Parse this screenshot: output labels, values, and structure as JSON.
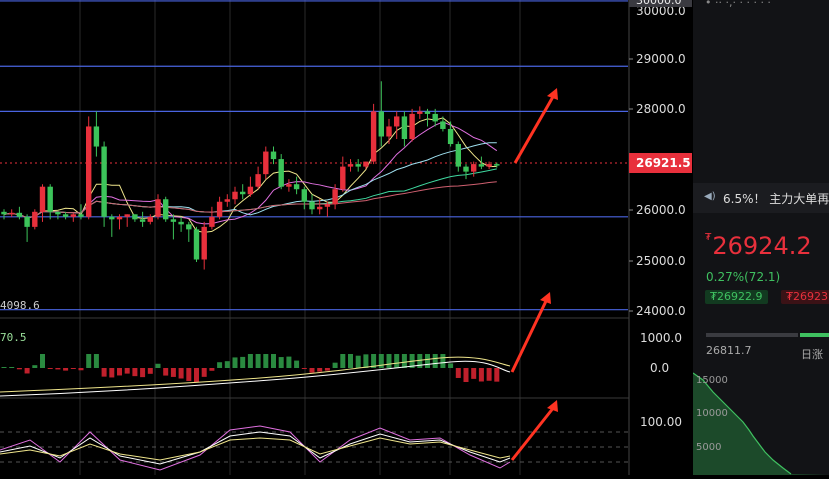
{
  "chart": {
    "y_axis_labels": [
      "30000.0",
      "29000.0",
      "28000.0",
      "26000.0",
      "25000.0",
      "24000.0"
    ],
    "current_price_tag": "26921.5",
    "top_partial_label": "30000.0",
    "left_level_label": "4098.6",
    "macd_axis_labels": [
      "1000.0",
      "0.0"
    ],
    "macd_left_label": "70.5",
    "kdj_axis_label": "100.00",
    "colors": {
      "up": "#e8303c",
      "down": "#3cc45a",
      "hline": "#4a64e0",
      "grid": "#2a2a2a",
      "tag_bg": "#e8303c",
      "arrow": "#ff3322"
    }
  },
  "chart_data": {
    "type": "candlestick",
    "ylim": [
      24300,
      30200
    ],
    "horizontal_levels": [
      30200,
      28900,
      28000,
      25900,
      24050
    ],
    "candles": [
      [
        26000,
        26050,
        25850,
        25950
      ],
      [
        25950,
        26050,
        25900,
        25980
      ],
      [
        25980,
        26100,
        25850,
        25900
      ],
      [
        25900,
        25950,
        25400,
        25700
      ],
      [
        25700,
        26050,
        25650,
        26000
      ],
      [
        26000,
        26550,
        25800,
        26500
      ],
      [
        26500,
        26550,
        25850,
        26000
      ],
      [
        26000,
        26000,
        25850,
        25950
      ],
      [
        25950,
        26000,
        25850,
        25900
      ],
      [
        25900,
        25980,
        25800,
        25950
      ],
      [
        25950,
        26150,
        25850,
        25900
      ],
      [
        25900,
        27900,
        25850,
        27700
      ],
      [
        27700,
        28000,
        27100,
        27300
      ],
      [
        27300,
        27400,
        25700,
        25900
      ],
      [
        25900,
        25950,
        25500,
        25850
      ],
      [
        25850,
        25950,
        25650,
        25900
      ],
      [
        25900,
        25950,
        25700,
        25950
      ],
      [
        25950,
        25950,
        25800,
        25850
      ],
      [
        25850,
        26000,
        25700,
        25800
      ],
      [
        25800,
        25950,
        25750,
        25900
      ],
      [
        25900,
        26350,
        25850,
        26250
      ],
      [
        26250,
        26300,
        25800,
        25850
      ],
      [
        25850,
        25950,
        25450,
        25800
      ],
      [
        25800,
        25900,
        25600,
        25750
      ],
      [
        25750,
        25800,
        25400,
        25650
      ],
      [
        25650,
        25700,
        25000,
        25050
      ],
      [
        25050,
        25800,
        24850,
        25700
      ],
      [
        25700,
        26100,
        25650,
        25900
      ],
      [
        25900,
        26300,
        25850,
        26200
      ],
      [
        26200,
        26350,
        26100,
        26250
      ],
      [
        26250,
        26500,
        26150,
        26400
      ],
      [
        26400,
        26550,
        26250,
        26350
      ],
      [
        26350,
        26700,
        26300,
        26500
      ],
      [
        26500,
        26900,
        26450,
        26750
      ],
      [
        26750,
        27300,
        26650,
        27200
      ],
      [
        27200,
        27300,
        26950,
        27050
      ],
      [
        27050,
        27150,
        26450,
        26500
      ],
      [
        26500,
        26650,
        26400,
        26550
      ],
      [
        26550,
        26700,
        26350,
        26450
      ],
      [
        26450,
        26500,
        26050,
        26200
      ],
      [
        26200,
        26350,
        25950,
        26050
      ],
      [
        26050,
        26250,
        25950,
        26100
      ],
      [
        26100,
        26200,
        25900,
        26150
      ],
      [
        26150,
        26550,
        26050,
        26450
      ],
      [
        26450,
        27100,
        26400,
        26900
      ],
      [
        26900,
        27050,
        26800,
        26950
      ],
      [
        26950,
        27050,
        26800,
        26900
      ],
      [
        26900,
        27000,
        26850,
        27000
      ],
      [
        27000,
        28150,
        26950,
        28000
      ],
      [
        28000,
        28600,
        27300,
        27500
      ],
      [
        27500,
        27850,
        27350,
        27700
      ],
      [
        27700,
        28000,
        27450,
        27900
      ],
      [
        27900,
        28000,
        27300,
        27450
      ],
      [
        27450,
        28050,
        27400,
        27950
      ],
      [
        27950,
        28100,
        27850,
        28000
      ],
      [
        28000,
        28050,
        27700,
        27950
      ],
      [
        27950,
        28050,
        27700,
        27800
      ],
      [
        27800,
        27900,
        27600,
        27650
      ],
      [
        27650,
        27800,
        27300,
        27350
      ],
      [
        27350,
        27400,
        26800,
        26900
      ],
      [
        26900,
        26950,
        26650,
        26800
      ],
      [
        26800,
        27000,
        26700,
        26950
      ],
      [
        26950,
        27100,
        26850,
        26900
      ],
      [
        26900,
        27000,
        26850,
        26950
      ],
      [
        26950,
        26980,
        26880,
        26921
      ]
    ]
  },
  "panel": {
    "ticker_partial": "• ··  ·,·   ·   · · · ·",
    "news_text": "6.5%！ 主力大单再",
    "currency_symbol": "₮",
    "last_price": "26924.2",
    "change": "0.27%(72.1)",
    "bid": "₮26922.9",
    "ask": "₮26923",
    "low_value": "26811.7",
    "range_label": "日涨",
    "mini_labels": [
      "15000",
      "10000",
      "5000"
    ]
  }
}
